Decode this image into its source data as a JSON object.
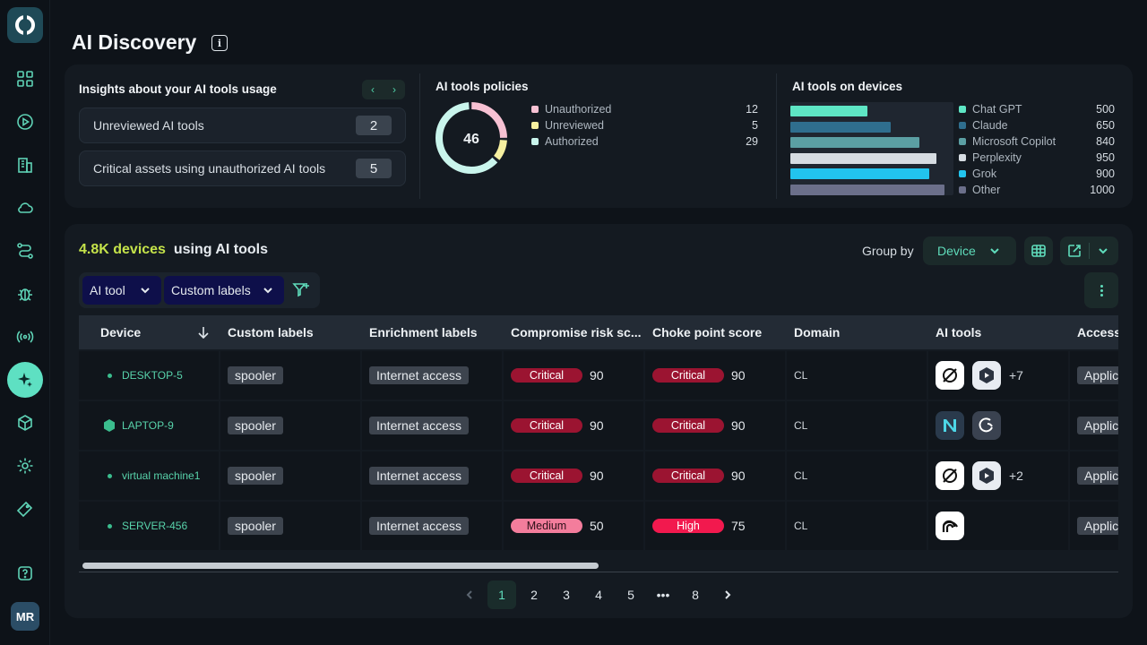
{
  "sidebar": {
    "avatar": "MR",
    "icons": [
      "dashboard-icon",
      "play-icon",
      "building-icon",
      "cloud-icon",
      "route-icon",
      "bug-icon",
      "broadcast-icon",
      "sparkle-icon",
      "box-icon",
      "settings-icon",
      "tag-icon",
      "help-icon"
    ]
  },
  "page": {
    "title": "AI Discovery",
    "info": "i"
  },
  "insights": {
    "title": "Insights about your AI tools usage",
    "items": [
      {
        "label": "Unreviewed AI tools",
        "count": "2"
      },
      {
        "label": "Critical assets using unauthorized AI tools",
        "count": "5"
      }
    ]
  },
  "policies": {
    "title": "AI tools policies",
    "total": "46",
    "items": [
      {
        "label": "Unauthorized",
        "value": "12",
        "color": "#f7c1d3"
      },
      {
        "label": "Unreviewed",
        "value": "5",
        "color": "#f6f0a0"
      },
      {
        "label": "Authorized",
        "value": "29",
        "color": "#c9f5ec"
      }
    ]
  },
  "devices_tools": {
    "title": "AI tools on devices",
    "items": [
      {
        "label": "Chat GPT",
        "value": "500",
        "color": "#5ee6c5"
      },
      {
        "label": "Claude",
        "value": "650",
        "color": "#2f6e8e"
      },
      {
        "label": "Microsoft Copilot",
        "value": "840",
        "color": "#5b9fa3"
      },
      {
        "label": "Perplexity",
        "value": "950",
        "color": "#d6dce2"
      },
      {
        "label": "Grok",
        "value": "900",
        "color": "#22c4ee"
      },
      {
        "label": "Other",
        "value": "1000",
        "color": "#6b6f8a"
      }
    ]
  },
  "devices": {
    "count": "4.8K devices",
    "suffix": "using AI tools",
    "group_by_label": "Group by",
    "group_by_value": "Device",
    "filters": [
      "AI tool",
      "Custom labels"
    ],
    "columns": [
      "Device",
      "Custom labels",
      "Enrichment labels",
      "Compromise risk sc...",
      "Choke point score",
      "Domain",
      "AI tools",
      "Access"
    ],
    "rows": [
      {
        "device": "DESKTOP-5",
        "icon": "status-dot",
        "custom": "spooler",
        "enrich": "Internet access",
        "risk_label": "Critical",
        "risk": "90",
        "choke_label": "Critical",
        "choke": "90",
        "domain": "CL",
        "tools": [
          "grok-icon",
          "dify-icon"
        ],
        "more": "+7",
        "access": "Applic"
      },
      {
        "device": "LAPTOP-9",
        "icon": "hexagon",
        "custom": "spooler",
        "enrich": "Internet access",
        "risk_label": "Critical",
        "risk": "90",
        "choke_label": "Critical",
        "choke": "90",
        "domain": "CL",
        "tools": [
          "n-icon",
          "deepseek-icon"
        ],
        "more": "",
        "access": "Applic"
      },
      {
        "device": "virtual machine1",
        "icon": "status-dot",
        "custom": "spooler",
        "enrich": "Internet access",
        "risk_label": "Critical",
        "risk": "90",
        "choke_label": "Critical",
        "choke": "90",
        "domain": "CL",
        "tools": [
          "grok-icon",
          "dify-icon"
        ],
        "more": "+2",
        "access": "Applic"
      },
      {
        "device": "SERVER-456",
        "icon": "status-dot",
        "custom": "spooler",
        "enrich": "Internet access",
        "risk_label": "Medium",
        "risk": "50",
        "choke_label": "High",
        "choke": "75",
        "domain": "CL",
        "tools": [
          "signal-icon"
        ],
        "more": "",
        "access": "Applic"
      }
    ],
    "pages": [
      "1",
      "2",
      "3",
      "4",
      "5",
      "•••",
      "8"
    ],
    "current_page": "1"
  }
}
